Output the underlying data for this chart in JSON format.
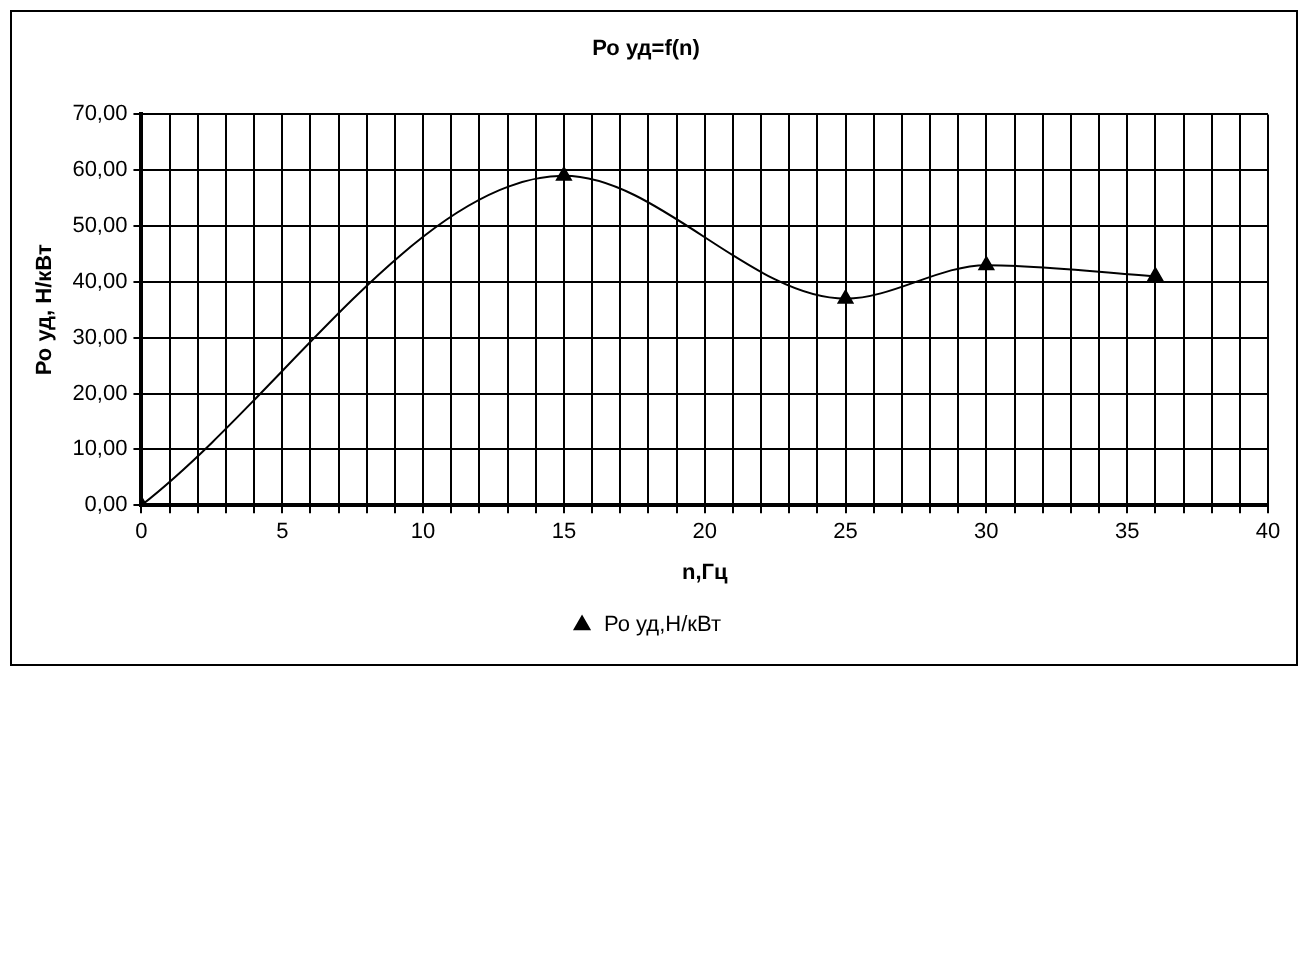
{
  "chart_data": {
    "type": "line",
    "title": "Ро уд=f(n)",
    "xlabel": "n,Гц",
    "ylabel": "Ро уд, Н/кВт",
    "x": [
      0,
      15,
      25,
      30,
      36
    ],
    "series": [
      {
        "name": "Ро уд,Н/кВт",
        "color": "#000000",
        "values": [
          0,
          59,
          37,
          43,
          41
        ]
      }
    ],
    "xlim": [
      0,
      40
    ],
    "xticks": [
      0,
      {
        "value": 1,
        "label": null
      },
      {
        "value": 2,
        "label": null
      },
      {
        "value": 3,
        "label": null
      },
      {
        "value": 4,
        "label": null
      },
      5,
      {
        "value": 6,
        "label": null
      },
      {
        "value": 7,
        "label": null
      },
      {
        "value": 8,
        "label": null
      },
      {
        "value": 9,
        "label": null
      },
      10,
      {
        "value": 11,
        "label": null
      },
      {
        "value": 12,
        "label": null
      },
      {
        "value": 13,
        "label": null
      },
      {
        "value": 14,
        "label": null
      },
      15,
      {
        "value": 16,
        "label": null
      },
      {
        "value": 17,
        "label": null
      },
      {
        "value": 18,
        "label": null
      },
      {
        "value": 19,
        "label": null
      },
      20,
      {
        "value": 21,
        "label": null
      },
      {
        "value": 22,
        "label": null
      },
      {
        "value": 23,
        "label": null
      },
      {
        "value": 24,
        "label": null
      },
      25,
      {
        "value": 26,
        "label": null
      },
      {
        "value": 27,
        "label": null
      },
      {
        "value": 28,
        "label": null
      },
      {
        "value": 29,
        "label": null
      },
      30,
      {
        "value": 31,
        "label": null
      },
      {
        "value": 32,
        "label": null
      },
      {
        "value": 33,
        "label": null
      },
      {
        "value": 34,
        "label": null
      },
      35,
      {
        "value": 36,
        "label": null
      },
      {
        "value": 37,
        "label": null
      },
      {
        "value": 38,
        "label": null
      },
      {
        "value": 39,
        "label": null
      },
      40
    ],
    "ylim": [
      0,
      70
    ],
    "yticks": [
      {
        "value": 0,
        "label": "0,00"
      },
      {
        "value": 10,
        "label": "10,00"
      },
      {
        "value": 20,
        "label": "20,00"
      },
      {
        "value": 30,
        "label": "30,00"
      },
      {
        "value": 40,
        "label": "40,00"
      },
      {
        "value": 50,
        "label": "50,00"
      },
      {
        "value": 60,
        "label": "60,00"
      },
      {
        "value": 70,
        "label": "70,00"
      }
    ],
    "grid": true,
    "legend": "bottom",
    "marker": "triangle",
    "line_style": "solid"
  }
}
